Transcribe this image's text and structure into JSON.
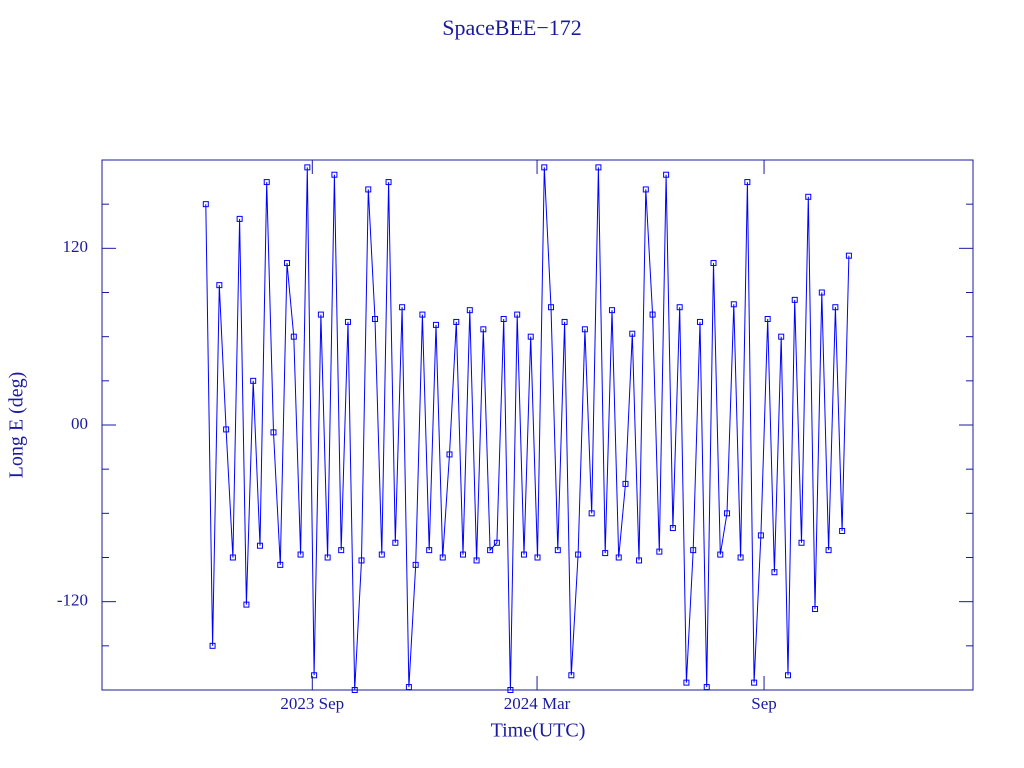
{
  "chart_data": {
    "type": "line",
    "title": "SpaceBEE−172",
    "x_label": "Time(UTC)",
    "y_label": "Long E (deg)",
    "xlim": [
      2023.2,
      2025.13
    ],
    "xticks": [
      {
        "value": 2023.666,
        "label": "2023 Sep"
      },
      {
        "value": 2024.164,
        "label": "2024 Mar"
      },
      {
        "value": 2024.667,
        "label": "Sep"
      }
    ],
    "ylim": [
      -180,
      180
    ],
    "yticks": [
      -120,
      {
        "value": 0,
        "label": "00"
      },
      120
    ],
    "y_minor_ticks": [
      -150,
      -90,
      -60,
      -30,
      30,
      60,
      90,
      150
    ],
    "series": [
      {
        "name": "SpaceBEE−172",
        "color": "#0000ff",
        "x": [
          2023.43,
          2023.445,
          2023.46,
          2023.475,
          2023.49,
          2023.505,
          2023.52,
          2023.535,
          2023.55,
          2023.565,
          2023.58,
          2023.595,
          2023.61,
          2023.625,
          2023.64,
          2023.655,
          2023.67,
          2023.685,
          2023.7,
          2023.715,
          2023.73,
          2023.745,
          2023.76,
          2023.775,
          2023.79,
          2023.805,
          2023.82,
          2023.835,
          2023.85,
          2023.865,
          2023.88,
          2023.895,
          2023.91,
          2023.925,
          2023.94,
          2023.955,
          2023.97,
          2023.985,
          2024.0,
          2024.015,
          2024.03,
          2024.045,
          2024.06,
          2024.075,
          2024.09,
          2024.105,
          2024.12,
          2024.135,
          2024.15,
          2024.165,
          2024.18,
          2024.195,
          2024.21,
          2024.225,
          2024.24,
          2024.255,
          2024.27,
          2024.285,
          2024.3,
          2024.315,
          2024.33,
          2024.345,
          2024.36,
          2024.375,
          2024.39,
          2024.405,
          2024.42,
          2024.435,
          2024.45,
          2024.465,
          2024.48,
          2024.495,
          2024.51,
          2024.525,
          2024.54,
          2024.555,
          2024.57,
          2024.585,
          2024.6,
          2024.615,
          2024.63,
          2024.645,
          2024.66,
          2024.675,
          2024.69,
          2024.705,
          2024.72,
          2024.735,
          2024.75,
          2024.765,
          2024.78,
          2024.795,
          2024.81,
          2024.825,
          2024.84,
          2024.855
        ],
        "values": [
          150,
          -150,
          95,
          -3,
          -90,
          140,
          -122,
          30,
          -82,
          165,
          -5,
          -95,
          110,
          60,
          -88,
          175,
          -170,
          75,
          -90,
          170,
          -85,
          70,
          -180,
          -92,
          160,
          72,
          -88,
          165,
          -80,
          80,
          -178,
          -95,
          75,
          -85,
          68,
          -90,
          -20,
          70,
          -88,
          78,
          -92,
          65,
          -85,
          -80,
          72,
          -180,
          75,
          -88,
          60,
          -90,
          175,
          80,
          -85,
          70,
          -170,
          -88,
          65,
          -60,
          175,
          -87,
          78,
          -90,
          -40,
          62,
          -92,
          160,
          75,
          -86,
          170,
          -70,
          80,
          -175,
          -85,
          70,
          -178,
          110,
          -88,
          -60,
          82,
          -90,
          165,
          -175,
          -75,
          72,
          -100,
          60,
          -170,
          85,
          -80,
          155,
          -125,
          90,
          -85,
          80,
          -72,
          115
        ]
      }
    ]
  }
}
